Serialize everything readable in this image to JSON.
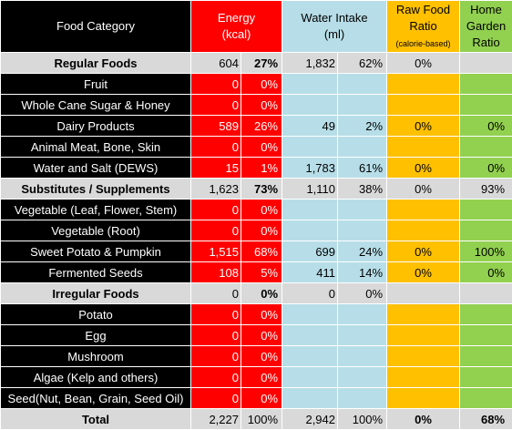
{
  "header": {
    "category": "Food Category",
    "energy_line1": "Energy",
    "energy_line2": "(kcal)",
    "water_line1": "Water Intake",
    "water_line2": "(ml)",
    "raw_line1": "Raw Food",
    "raw_line2": "Ratio",
    "raw_line3": "(calorie-based)",
    "garden_line1": "Home",
    "garden_line2": "Garden",
    "garden_line3": "Ratio"
  },
  "rows": [
    {
      "label": "Regular Foods",
      "kind": "group",
      "e_val": "604",
      "e_pct": "27%",
      "w_val": "1,832",
      "w_pct": "62%",
      "raw": "0%",
      "garden": ""
    },
    {
      "label": "Fruit",
      "kind": "item",
      "e_val": "0",
      "e_pct": "0%",
      "w_val": "",
      "w_pct": "",
      "raw": "",
      "garden": ""
    },
    {
      "label": "Whole Cane Sugar & Honey",
      "kind": "item",
      "e_val": "0",
      "e_pct": "0%",
      "w_val": "",
      "w_pct": "",
      "raw": "",
      "garden": ""
    },
    {
      "label": "Dairy Products",
      "kind": "item",
      "e_val": "589",
      "e_pct": "26%",
      "w_val": "49",
      "w_pct": "2%",
      "raw": "0%",
      "garden": "0%"
    },
    {
      "label": "Animal Meat, Bone, Skin",
      "kind": "item",
      "e_val": "0",
      "e_pct": "0%",
      "w_val": "",
      "w_pct": "",
      "raw": "",
      "garden": ""
    },
    {
      "label": "Water and Salt (DEWS)",
      "kind": "item",
      "e_val": "15",
      "e_pct": "1%",
      "w_val": "1,783",
      "w_pct": "61%",
      "raw": "0%",
      "garden": "0%"
    },
    {
      "label": "Substitutes / Supplements",
      "kind": "group",
      "e_val": "1,623",
      "e_pct": "73%",
      "w_val": "1,110",
      "w_pct": "38%",
      "raw": "0%",
      "garden": "93%"
    },
    {
      "label": "Vegetable (Leaf, Flower, Stem)",
      "kind": "item",
      "e_val": "0",
      "e_pct": "0%",
      "w_val": "",
      "w_pct": "",
      "raw": "",
      "garden": ""
    },
    {
      "label": "Vegetable (Root)",
      "kind": "item",
      "e_val": "0",
      "e_pct": "0%",
      "w_val": "",
      "w_pct": "",
      "raw": "",
      "garden": ""
    },
    {
      "label": "Sweet Potato & Pumpkin",
      "kind": "item",
      "e_val": "1,515",
      "e_pct": "68%",
      "w_val": "699",
      "w_pct": "24%",
      "raw": "0%",
      "garden": "100%"
    },
    {
      "label": "Fermented Seeds",
      "kind": "item",
      "e_val": "108",
      "e_pct": "5%",
      "w_val": "411",
      "w_pct": "14%",
      "raw": "0%",
      "garden": "0%"
    },
    {
      "label": "Irregular Foods",
      "kind": "group",
      "e_val": "0",
      "e_pct": "0%",
      "w_val": "0",
      "w_pct": "0%",
      "raw": "",
      "garden": ""
    },
    {
      "label": "Potato",
      "kind": "item",
      "e_val": "0",
      "e_pct": "0%",
      "w_val": "",
      "w_pct": "",
      "raw": "",
      "garden": ""
    },
    {
      "label": "Egg",
      "kind": "item",
      "e_val": "0",
      "e_pct": "0%",
      "w_val": "",
      "w_pct": "",
      "raw": "",
      "garden": ""
    },
    {
      "label": "Mushroom",
      "kind": "item",
      "e_val": "0",
      "e_pct": "0%",
      "w_val": "",
      "w_pct": "",
      "raw": "",
      "garden": ""
    },
    {
      "label": "Algae (Kelp and others)",
      "kind": "item",
      "e_val": "0",
      "e_pct": "0%",
      "w_val": "",
      "w_pct": "",
      "raw": "",
      "garden": ""
    },
    {
      "label": "Seed(Nut, Bean, Grain, Seed Oil)",
      "kind": "item",
      "e_val": "0",
      "e_pct": "0%",
      "w_val": "",
      "w_pct": "",
      "raw": "",
      "garden": ""
    }
  ],
  "total": {
    "label": "Total",
    "e_val": "2,227",
    "e_pct": "100%",
    "w_val": "2,942",
    "w_pct": "100%",
    "raw": "0%",
    "garden": "68%"
  },
  "colors": {
    "energy": "#ff0000",
    "water": "#b7dee8",
    "raw": "#ffc000",
    "garden": "#92d050",
    "item_bg": "#000000",
    "group_bg": "#d9d9d9"
  }
}
